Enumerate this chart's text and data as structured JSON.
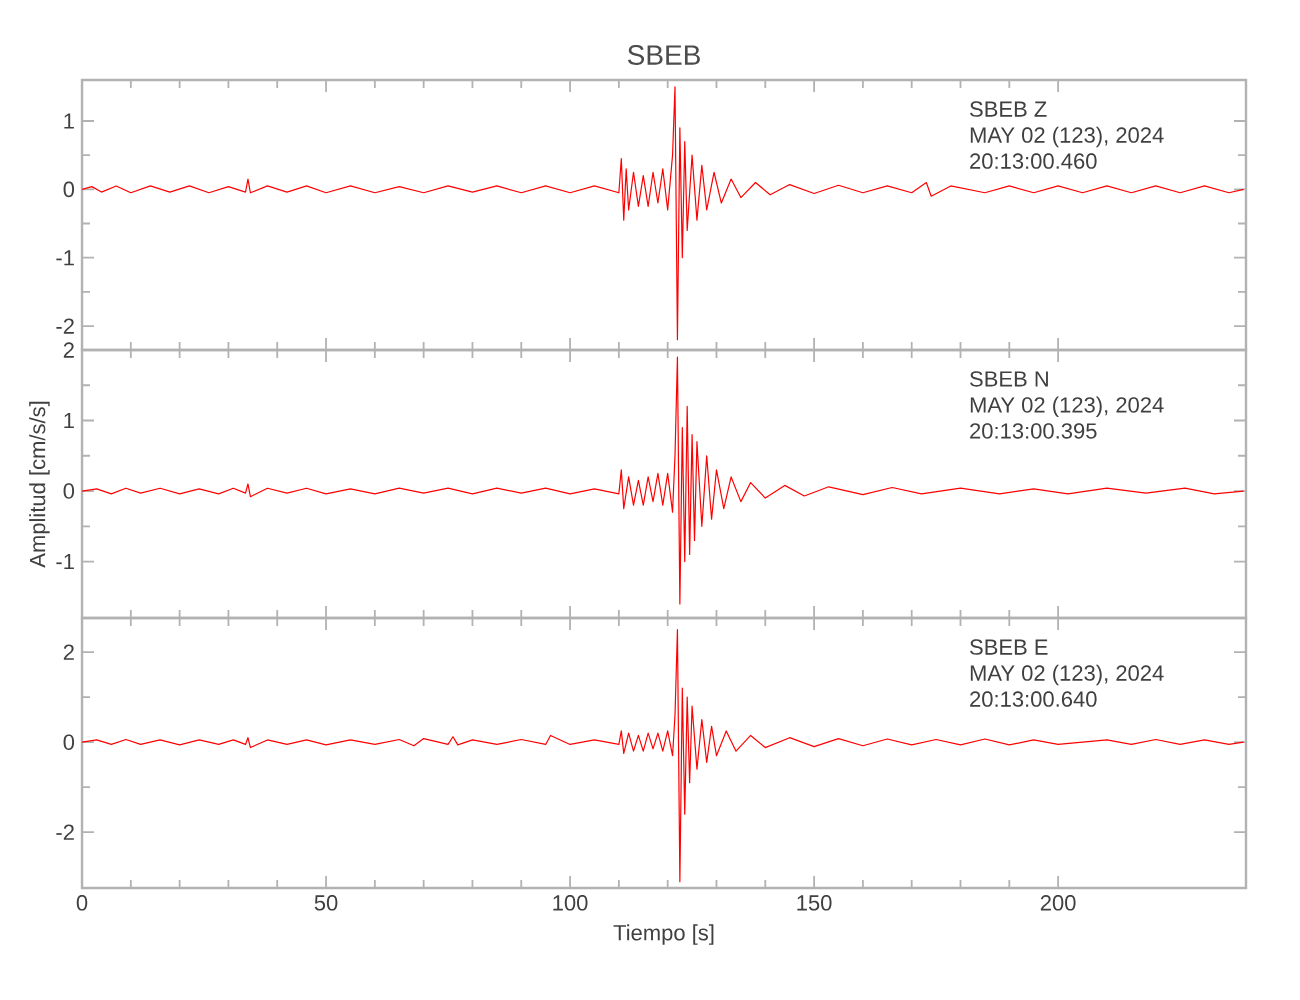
{
  "chart_data": [
    {
      "type": "line",
      "title": "SBEB",
      "color": "#ff0000",
      "xlim": [
        0,
        238.5
      ],
      "ylim": [
        -2.35,
        1.6
      ],
      "xticks": [
        0,
        50,
        100,
        150,
        200
      ],
      "yticks": [
        -2,
        -1,
        0,
        1
      ],
      "tick_labels": "y",
      "annotations": [
        "SBEB   Z",
        "MAY 02 (123), 2024",
        "20:13:00.460"
      ],
      "x": [
        0,
        2,
        4,
        7,
        10,
        14,
        18,
        22,
        26,
        30,
        33.5,
        34,
        34.5,
        38,
        42,
        46,
        50,
        55,
        60,
        65,
        70,
        75,
        80,
        85,
        90,
        95,
        100,
        105,
        110,
        110.5,
        111,
        111.5,
        112,
        113,
        114,
        115,
        116,
        117,
        118,
        119,
        120,
        121,
        121.5,
        122,
        122.5,
        123,
        123.5,
        124,
        125,
        126,
        127,
        128,
        129.5,
        131,
        133,
        135,
        138,
        141,
        145,
        150,
        155,
        160,
        165,
        170,
        173,
        174,
        178,
        185,
        190,
        195,
        200,
        205,
        210,
        215,
        220,
        225,
        230,
        235,
        238
      ],
      "values": [
        0,
        0.04,
        -0.04,
        0.05,
        -0.05,
        0.05,
        -0.04,
        0.05,
        -0.05,
        0.04,
        -0.04,
        0.15,
        -0.05,
        0.05,
        -0.04,
        0.05,
        -0.05,
        0.05,
        -0.05,
        0.04,
        -0.05,
        0.05,
        -0.04,
        0.05,
        -0.05,
        0.05,
        -0.05,
        0.05,
        -0.05,
        0.45,
        -0.45,
        0.3,
        -0.3,
        0.25,
        -0.25,
        0.2,
        -0.25,
        0.25,
        -0.2,
        0.3,
        -0.3,
        0.5,
        1.5,
        -2.2,
        0.9,
        -1.0,
        0.7,
        -0.6,
        0.5,
        -0.45,
        0.35,
        -0.3,
        0.25,
        -0.2,
        0.15,
        -0.12,
        0.1,
        -0.08,
        0.07,
        -0.06,
        0.06,
        -0.05,
        0.05,
        -0.05,
        0.1,
        -0.1,
        0.05,
        -0.05,
        0.05,
        -0.05,
        0.05,
        -0.05,
        0.05,
        -0.05,
        0.05,
        -0.05,
        0.05,
        -0.05,
        0
      ]
    },
    {
      "type": "line",
      "ylabel": "Amplitud [cm/s/s]",
      "color": "#ff0000",
      "xlim": [
        0,
        238.5
      ],
      "ylim": [
        -1.8,
        2
      ],
      "xticks": [
        0,
        50,
        100,
        150,
        200
      ],
      "yticks": [
        -1,
        0,
        1,
        2
      ],
      "tick_labels": "y",
      "annotations": [
        "SBEB   N",
        "MAY 02 (123), 2024",
        "20:13:00.395"
      ],
      "x": [
        0,
        3,
        6,
        9,
        12,
        16,
        20,
        24,
        28,
        31,
        33.5,
        34,
        34.5,
        38,
        42,
        46,
        50,
        55,
        60,
        65,
        70,
        75,
        80,
        85,
        90,
        95,
        100,
        105,
        110,
        110.5,
        111,
        112,
        113,
        114,
        115,
        116,
        117,
        118,
        119,
        120,
        121,
        121.5,
        122,
        122.5,
        123,
        123.5,
        124,
        124.5,
        125,
        125.5,
        126,
        127,
        128,
        129,
        130,
        131.5,
        133,
        135,
        137,
        140,
        144,
        148,
        153,
        160,
        166,
        172,
        180,
        188,
        195,
        202,
        210,
        218,
        226,
        232,
        238
      ],
      "values": [
        0,
        0.03,
        -0.04,
        0.04,
        -0.03,
        0.04,
        -0.04,
        0.03,
        -0.04,
        0.04,
        -0.03,
        0.1,
        -0.08,
        0.04,
        -0.03,
        0.04,
        -0.04,
        0.03,
        -0.04,
        0.04,
        -0.03,
        0.04,
        -0.04,
        0.04,
        -0.03,
        0.04,
        -0.04,
        0.03,
        -0.04,
        0.3,
        -0.25,
        0.2,
        -0.2,
        0.15,
        -0.2,
        0.2,
        -0.15,
        0.25,
        -0.2,
        0.25,
        -0.3,
        0.5,
        1.9,
        -1.6,
        0.9,
        -1.0,
        1.2,
        -0.9,
        0.8,
        -0.7,
        0.7,
        -0.5,
        0.5,
        -0.4,
        0.3,
        -0.25,
        0.2,
        -0.15,
        0.12,
        -0.1,
        0.08,
        -0.07,
        0.06,
        -0.05,
        0.05,
        -0.04,
        0.04,
        -0.04,
        0.03,
        -0.04,
        0.04,
        -0.03,
        0.04,
        -0.04,
        0
      ]
    },
    {
      "type": "line",
      "xlabel": "Tiempo [s]",
      "color": "#ff0000",
      "xlim": [
        0,
        238.5
      ],
      "ylim": [
        -3.24,
        2.76
      ],
      "xticks": [
        0,
        50,
        100,
        150,
        200
      ],
      "yticks": [
        -2,
        0,
        2
      ],
      "annotations": [
        "SBEB   E",
        "MAY 02 (123), 2024",
        "20:13:00.640"
      ],
      "x": [
        0,
        3,
        6,
        9,
        12,
        16,
        20,
        24,
        28,
        31,
        33.5,
        34,
        34.5,
        38,
        42,
        46,
        50,
        55,
        60,
        65,
        68,
        70,
        75,
        76,
        77,
        80,
        85,
        90,
        95,
        96,
        100,
        105,
        110,
        110.5,
        111,
        112,
        113,
        114,
        115,
        116,
        117,
        118,
        119,
        120,
        121,
        121.5,
        122,
        122.5,
        123,
        123.5,
        124,
        124.5,
        125,
        126,
        127,
        128,
        129,
        130,
        132,
        134,
        137,
        140,
        145,
        150,
        155,
        160,
        165,
        170,
        175,
        180,
        185,
        190,
        195,
        200,
        210,
        215,
        220,
        225,
        230,
        235,
        238
      ],
      "values": [
        0,
        0.05,
        -0.05,
        0.06,
        -0.05,
        0.05,
        -0.06,
        0.05,
        -0.05,
        0.05,
        -0.05,
        0.1,
        -0.12,
        0.05,
        -0.05,
        0.05,
        -0.06,
        0.05,
        -0.05,
        0.06,
        -0.08,
        0.08,
        -0.05,
        0.12,
        -0.06,
        0.05,
        -0.05,
        0.06,
        -0.05,
        0.15,
        -0.05,
        0.05,
        -0.05,
        0.25,
        -0.25,
        0.2,
        -0.2,
        0.15,
        -0.2,
        0.2,
        -0.15,
        0.2,
        -0.2,
        0.25,
        -0.3,
        0.6,
        2.5,
        -3.1,
        1.2,
        -1.6,
        1.0,
        -0.9,
        0.8,
        -0.6,
        0.5,
        -0.45,
        0.35,
        -0.3,
        0.25,
        -0.2,
        0.15,
        -0.12,
        0.1,
        -0.1,
        0.08,
        -0.08,
        0.07,
        -0.06,
        0.06,
        -0.06,
        0.07,
        -0.06,
        0.05,
        -0.05,
        0.05,
        -0.05,
        0.06,
        -0.05,
        0.05,
        -0.05,
        0
      ]
    }
  ]
}
